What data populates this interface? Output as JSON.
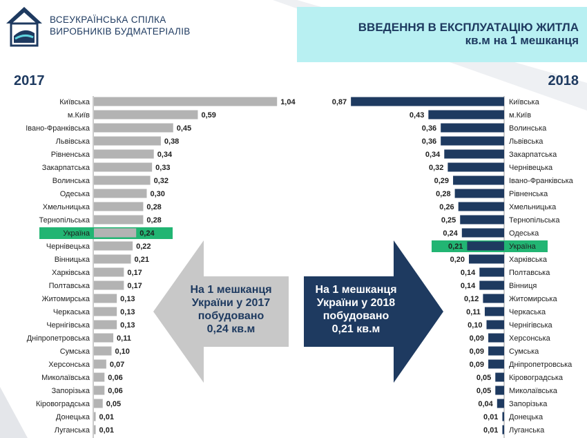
{
  "header": {
    "org_line1": "ВСЕУКРАЇНСЬКА СПІЛКА",
    "org_line2": "ВИРОБНИКІВ БУДМАТЕРІАЛІВ",
    "title_line1": "ВВЕДЕННЯ В ЕКСПЛУАТАЦІЮ ЖИТЛА",
    "title_line2": "кв.м на 1 мешканця"
  },
  "colors": {
    "gray_bar": "#b3b3b3",
    "navy_bar": "#1e3a60",
    "highlight": "#22b573",
    "header_band": "#b8f0f2"
  },
  "arrows": {
    "left_text": [
      "На 1 мешканця",
      "України у 2017",
      "побудовано",
      "0,24 кв.м"
    ],
    "right_text": [
      "На 1 мешканця",
      "України у 2018",
      "побудовано",
      "0,21 кв.м"
    ]
  },
  "chart_data": [
    {
      "type": "bar",
      "orientation": "horizontal",
      "year_label": "2017",
      "highlight": "Україна",
      "categories": [
        "Київська",
        "м.Київ",
        "Івано-Франківська",
        "Львівська",
        "Рівненська",
        "Закарпатська",
        "Волинська",
        "Одеська",
        "Хмельницька",
        "Тернопільська",
        "Україна",
        "Чернівецька",
        "Вінницька",
        "Харківська",
        "Полтавська",
        "Житомирська",
        "Черкаська",
        "Чернігівська",
        "Дніпропетровська",
        "Сумська",
        "Херсонська",
        "Миколаївська",
        "Запорізька",
        "Кіровоградська",
        "Донецька",
        "Луганська"
      ],
      "values": [
        1.04,
        0.59,
        0.45,
        0.38,
        0.34,
        0.33,
        0.32,
        0.3,
        0.28,
        0.28,
        0.24,
        0.22,
        0.21,
        0.17,
        0.17,
        0.13,
        0.13,
        0.13,
        0.11,
        0.1,
        0.07,
        0.06,
        0.06,
        0.05,
        0.01,
        0.01
      ],
      "value_labels": [
        "1,04",
        "0,59",
        "0,45",
        "0,38",
        "0,34",
        "0,33",
        "0,32",
        "0,30",
        "0,28",
        "0,28",
        "0,24",
        "0,22",
        "0,21",
        "0,17",
        "0,17",
        "0,13",
        "0,13",
        "0,13",
        "0,11",
        "0,10",
        "0,07",
        "0,06",
        "0,06",
        "0,05",
        "0,01",
        "0,01"
      ]
    },
    {
      "type": "bar",
      "orientation": "horizontal",
      "year_label": "2018",
      "highlight": "Україна",
      "categories": [
        "Київська",
        "м.Київ",
        "Волинська",
        "Львівська",
        "Закарпатська",
        "Чернівецька",
        "Івано-Франківська",
        "Рівненська",
        "Хмельницька",
        "Тернопільська",
        "Одеська",
        "Україна",
        "Харківська",
        "Полтавська",
        "Вінниця",
        "Житомирська",
        "Черкаська",
        "Чернігівська",
        "Херсонська",
        "Сумська",
        "Дніпропетровська",
        "Кіровоградська",
        "Миколаївська",
        "Запорізька",
        "Донецька",
        "Луганська"
      ],
      "values": [
        0.87,
        0.43,
        0.36,
        0.36,
        0.34,
        0.32,
        0.29,
        0.28,
        0.26,
        0.25,
        0.24,
        0.21,
        0.2,
        0.14,
        0.14,
        0.12,
        0.11,
        0.1,
        0.09,
        0.09,
        0.09,
        0.05,
        0.05,
        0.04,
        0.01,
        0.01
      ],
      "value_labels": [
        "0,87",
        "0,43",
        "0,36",
        "0,36",
        "0,34",
        "0,32",
        "0,29",
        "0,28",
        "0,26",
        "0,25",
        "0,24",
        "0,21",
        "0,20",
        "0,14",
        "0,14",
        "0,12",
        "0,11",
        "0,10",
        "0,09",
        "0,09",
        "0,09",
        "0,05",
        "0,05",
        "0,04",
        "0,01",
        "0,01"
      ]
    }
  ]
}
